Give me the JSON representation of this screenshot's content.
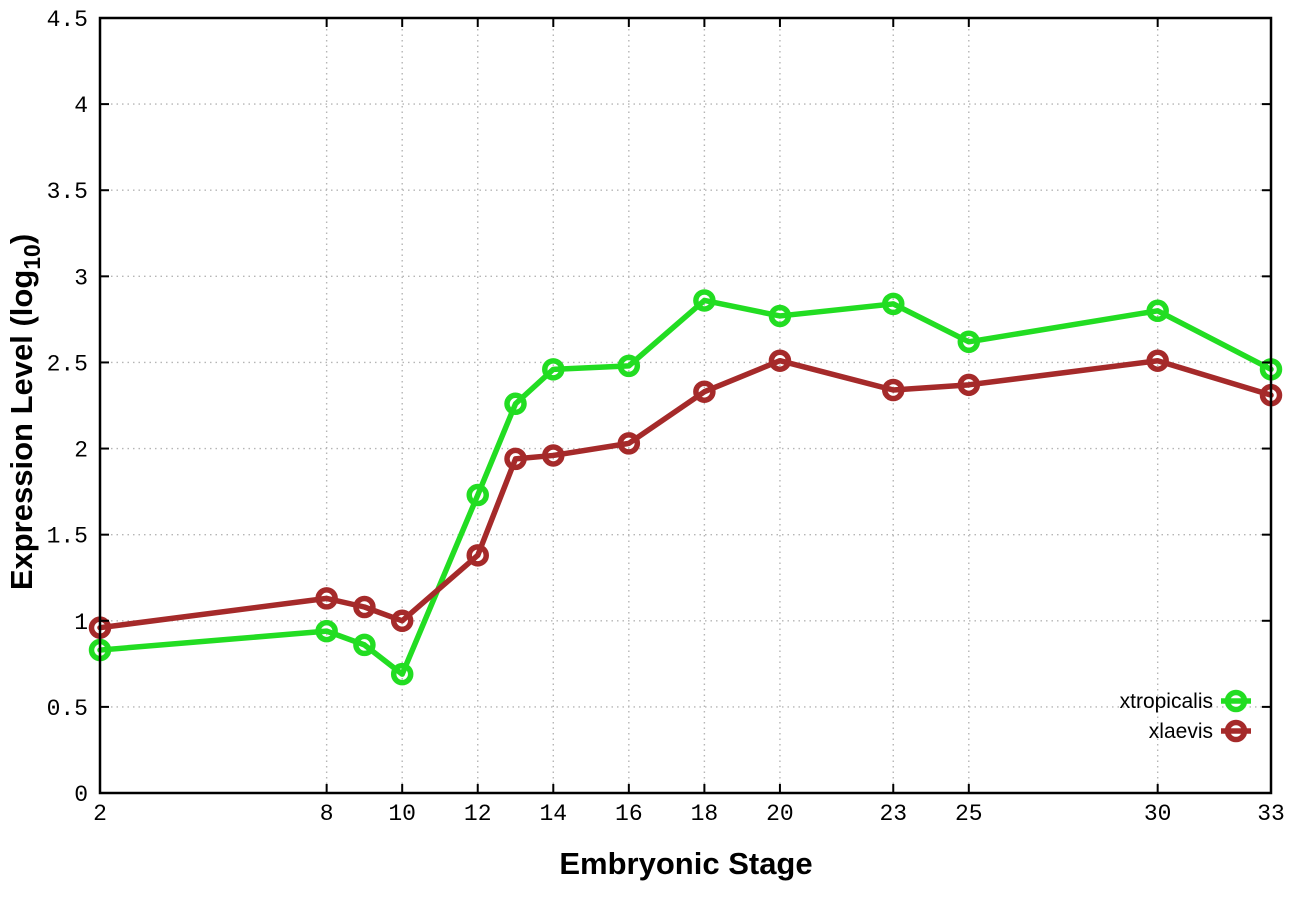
{
  "chart_data": {
    "type": "line",
    "title": "",
    "xlabel": "Embryonic Stage",
    "ylabel": "Expression Level (log10)",
    "ylabel_prefix": "Expression Level (log",
    "ylabel_subscript": "10",
    "ylabel_suffix": ")",
    "xlim": [
      2,
      33
    ],
    "ylim": [
      0,
      4.5
    ],
    "xticks": [
      2,
      8,
      10,
      12,
      14,
      16,
      18,
      20,
      23,
      25,
      30,
      33
    ],
    "yticks": [
      0,
      0.5,
      1,
      1.5,
      2,
      2.5,
      3,
      3.5,
      4,
      4.5
    ],
    "grid": true,
    "legend_position": "bottom-right-inside",
    "x": [
      2,
      8,
      9,
      10,
      12,
      13,
      14,
      16,
      18,
      20,
      23,
      25,
      30,
      33
    ],
    "series": [
      {
        "name": "xtropicalis",
        "color": "#22dd22",
        "values": [
          0.83,
          0.94,
          0.86,
          0.69,
          1.73,
          2.26,
          2.46,
          2.48,
          2.86,
          2.77,
          2.84,
          2.62,
          2.8,
          2.46
        ]
      },
      {
        "name": "xlaevis",
        "color": "#a52a2a",
        "values": [
          0.96,
          1.13,
          1.08,
          1.0,
          1.38,
          1.94,
          1.96,
          2.03,
          2.33,
          2.51,
          2.34,
          2.37,
          2.51,
          2.31
        ]
      }
    ]
  },
  "style_colors": {
    "background": "#ffffff",
    "border": "#000000",
    "grid": "#b5b5b5",
    "tick_text": "#000000"
  }
}
